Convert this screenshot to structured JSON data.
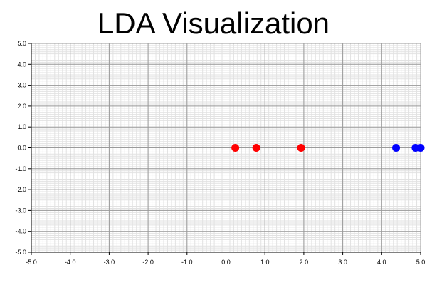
{
  "chart_data": {
    "type": "scatter",
    "title": "LDA Visualization",
    "xlabel": "",
    "ylabel": "",
    "xlim": [
      -5.0,
      5.0
    ],
    "ylim": [
      -5.0,
      5.0
    ],
    "x_ticks": [
      -5.0,
      -4.0,
      -3.0,
      -2.0,
      -1.0,
      0.0,
      1.0,
      2.0,
      3.0,
      4.0,
      5.0
    ],
    "y_ticks": [
      -5.0,
      -4.0,
      -3.0,
      -2.0,
      -1.0,
      0.0,
      1.0,
      2.0,
      3.0,
      4.0,
      5.0
    ],
    "x_tick_labels": [
      "-5.0",
      "-4.0",
      "-3.0",
      "-2.0",
      "-1.0",
      "0.0",
      "1.0",
      "2.0",
      "3.0",
      "4.0",
      "5.0"
    ],
    "y_tick_labels": [
      "-5.0",
      "-4.0",
      "-3.0",
      "-2.0",
      "-1.0",
      "0.0",
      "1.0",
      "2.0",
      "3.0",
      "4.0",
      "5.0"
    ],
    "grid": true,
    "minor_grid_per_major": 10,
    "legend": "none",
    "series": [
      {
        "color": "#ff0000",
        "points": [
          {
            "x": 0.24,
            "y": 0.0
          },
          {
            "x": 0.78,
            "y": 0.0
          },
          {
            "x": 1.93,
            "y": 0.0
          }
        ]
      },
      {
        "color": "#0000ff",
        "points": [
          {
            "x": 4.37,
            "y": 0.0
          },
          {
            "x": 4.87,
            "y": 0.0
          },
          {
            "x": 5.0,
            "y": 0.0
          }
        ]
      }
    ]
  }
}
